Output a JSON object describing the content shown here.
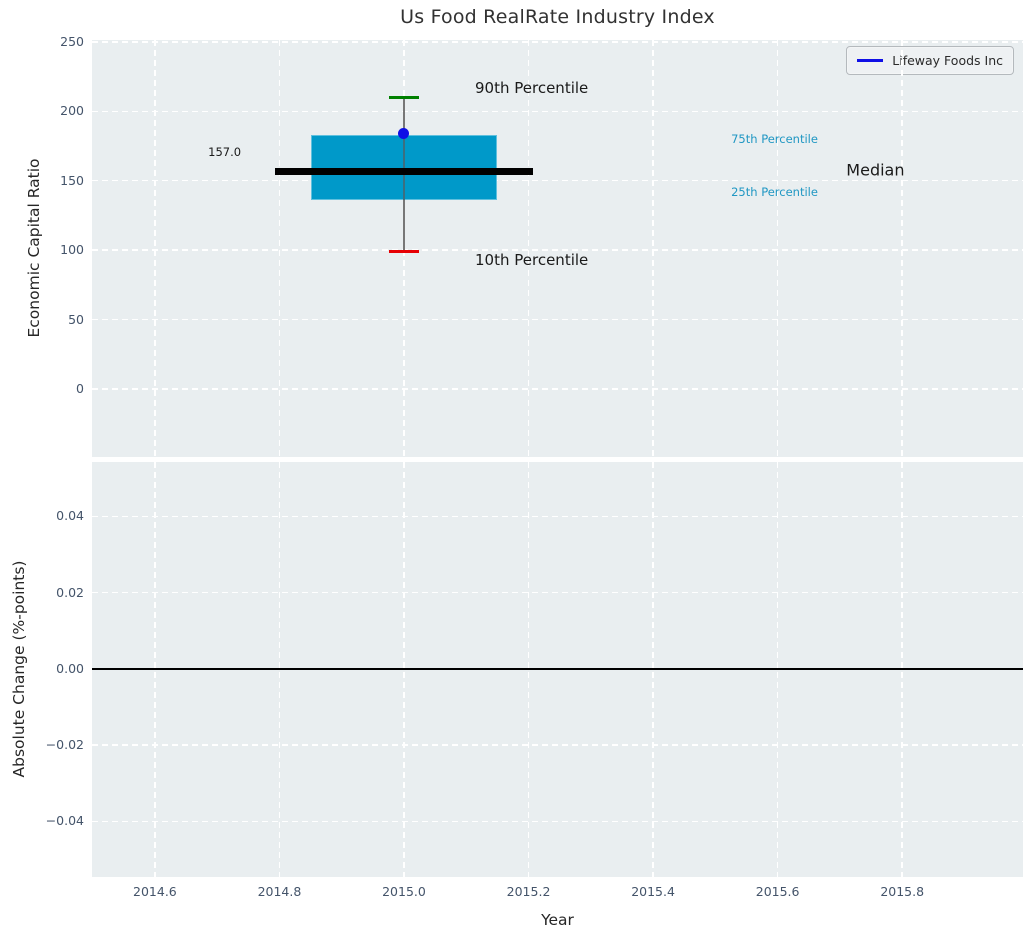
{
  "chart_data": {
    "type": "box",
    "title": "Us Food RealRate Industry Index",
    "xlabel": "Year",
    "xlim": [
      2014.499,
      2015.994
    ],
    "xticks": {
      "values": [
        2014.6,
        2014.8,
        2015.0,
        2015.2,
        2015.4,
        2015.6,
        2015.8
      ],
      "labels": [
        "2014.6",
        "2014.8",
        "2015.0",
        "2015.2",
        "2015.4",
        "2015.6",
        "2015.8"
      ]
    },
    "grid": "white-dashed",
    "background_color": "#e9eef0",
    "subplots": [
      {
        "ylabel": "Economic Capital Ratio",
        "ylim": [
          -49,
          251.4
        ],
        "yticks": {
          "values": [
            0,
            50,
            100,
            150,
            200,
            250
          ],
          "labels": [
            "0",
            "50",
            "100",
            "150",
            "200",
            "250"
          ]
        },
        "box": {
          "x": 2015.0,
          "p10": 99,
          "p25": 136,
          "median": 157.0,
          "p75": 183,
          "p90": 210,
          "box_halfwidth": 0.15,
          "median_halfwidth": 0.2075,
          "cap_halfwidth": 0.024,
          "colors": {
            "box_fill": "#0099c9",
            "box_edge": "#5fc0de",
            "median": "#000000",
            "whisker": "#777777",
            "cap_upper": "#008000",
            "cap_lower": "#e60004"
          }
        },
        "company_point": {
          "label": "Lifeway Foods Inc",
          "x": 2015.0,
          "value": 184,
          "color": "#0f0fe6"
        },
        "annotations": [
          {
            "text": "90th Percentile",
            "x": 2015.205,
            "y": 217.0,
            "size": 15,
            "color": "#1a1a1a"
          },
          {
            "text": "10th Percentile",
            "x": 2015.205,
            "y": 93.0,
            "size": 15,
            "color": "#1a1a1a"
          },
          {
            "text": "75th Percentile",
            "x": 2015.595,
            "y": 180.0,
            "size": 11.5,
            "color": "#2097c3"
          },
          {
            "text": "25th Percentile",
            "x": 2015.595,
            "y": 142.0,
            "size": 11.5,
            "color": "#2097c3"
          },
          {
            "text": "Median",
            "x": 2015.757,
            "y": 157.5,
            "size": 16,
            "color": "#1a1a1a"
          },
          {
            "text": "157.0",
            "x": 2014.712,
            "y": 171.0,
            "size": 11.5,
            "color": "#1a1a1a"
          }
        ]
      },
      {
        "ylabel": "Absolute Change (%-points)",
        "ylim": [
          -0.0546,
          0.0543
        ],
        "yticks": {
          "values": [
            0.04,
            0.02,
            0.0,
            -0.02,
            -0.04
          ],
          "labels": [
            "0.04",
            "0.02",
            "0.00",
            "−0.02",
            "−0.04"
          ]
        },
        "zero_line": 0.0
      }
    ],
    "legend": {
      "label": "Lifeway Foods Inc",
      "line_color": "#0f0fe6",
      "position": "upper-right"
    }
  }
}
